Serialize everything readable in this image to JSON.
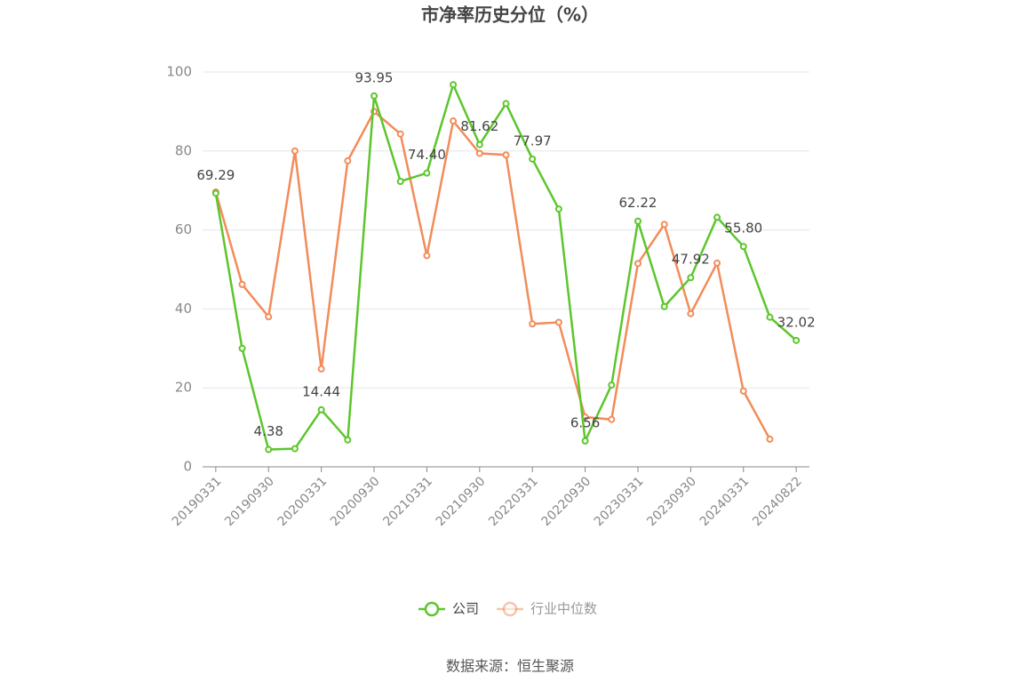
{
  "chart_data": {
    "type": "line",
    "title": "市净率历史分位（%）",
    "source": "数据来源：恒生聚源",
    "categories": [
      "20190331",
      null,
      "20190930",
      null,
      "20200331",
      null,
      "20200930",
      null,
      "20210331",
      null,
      "20210930",
      null,
      "20220331",
      null,
      "20220930",
      null,
      "20230331",
      null,
      "20230930",
      null,
      "20240331",
      null,
      "20240822"
    ],
    "series": [
      {
        "name": "公司",
        "color": "#5cc62c",
        "values": [
          69.29,
          30,
          4.38,
          4.6,
          14.44,
          6.8,
          93.95,
          72.3,
          74.4,
          96.8,
          81.62,
          92,
          77.97,
          65.3,
          6.56,
          20.7,
          62.22,
          40.6,
          47.92,
          63.2,
          55.8,
          37.9,
          32.02
        ],
        "value_labels": [
          "69.29",
          null,
          "4.38",
          null,
          "14.44",
          null,
          "93.95",
          null,
          "74.40",
          null,
          "81.62",
          null,
          "77.97",
          null,
          "6.56",
          null,
          "62.22",
          null,
          "47.92",
          null,
          "55.80",
          null,
          "32.02"
        ]
      },
      {
        "name": "行业中位数",
        "color": "#f28c5a",
        "values": [
          69.6,
          46.2,
          38,
          80,
          24.8,
          77.5,
          90,
          84.3,
          53.5,
          87.6,
          79.4,
          79,
          36.2,
          36.6,
          12.6,
          12,
          51.5,
          61.4,
          38.8,
          51.6,
          19.2,
          7,
          null
        ]
      }
    ],
    "ylim": [
      0,
      100
    ],
    "yticks": [
      0,
      20,
      40,
      60,
      80,
      100
    ],
    "grid": true
  }
}
